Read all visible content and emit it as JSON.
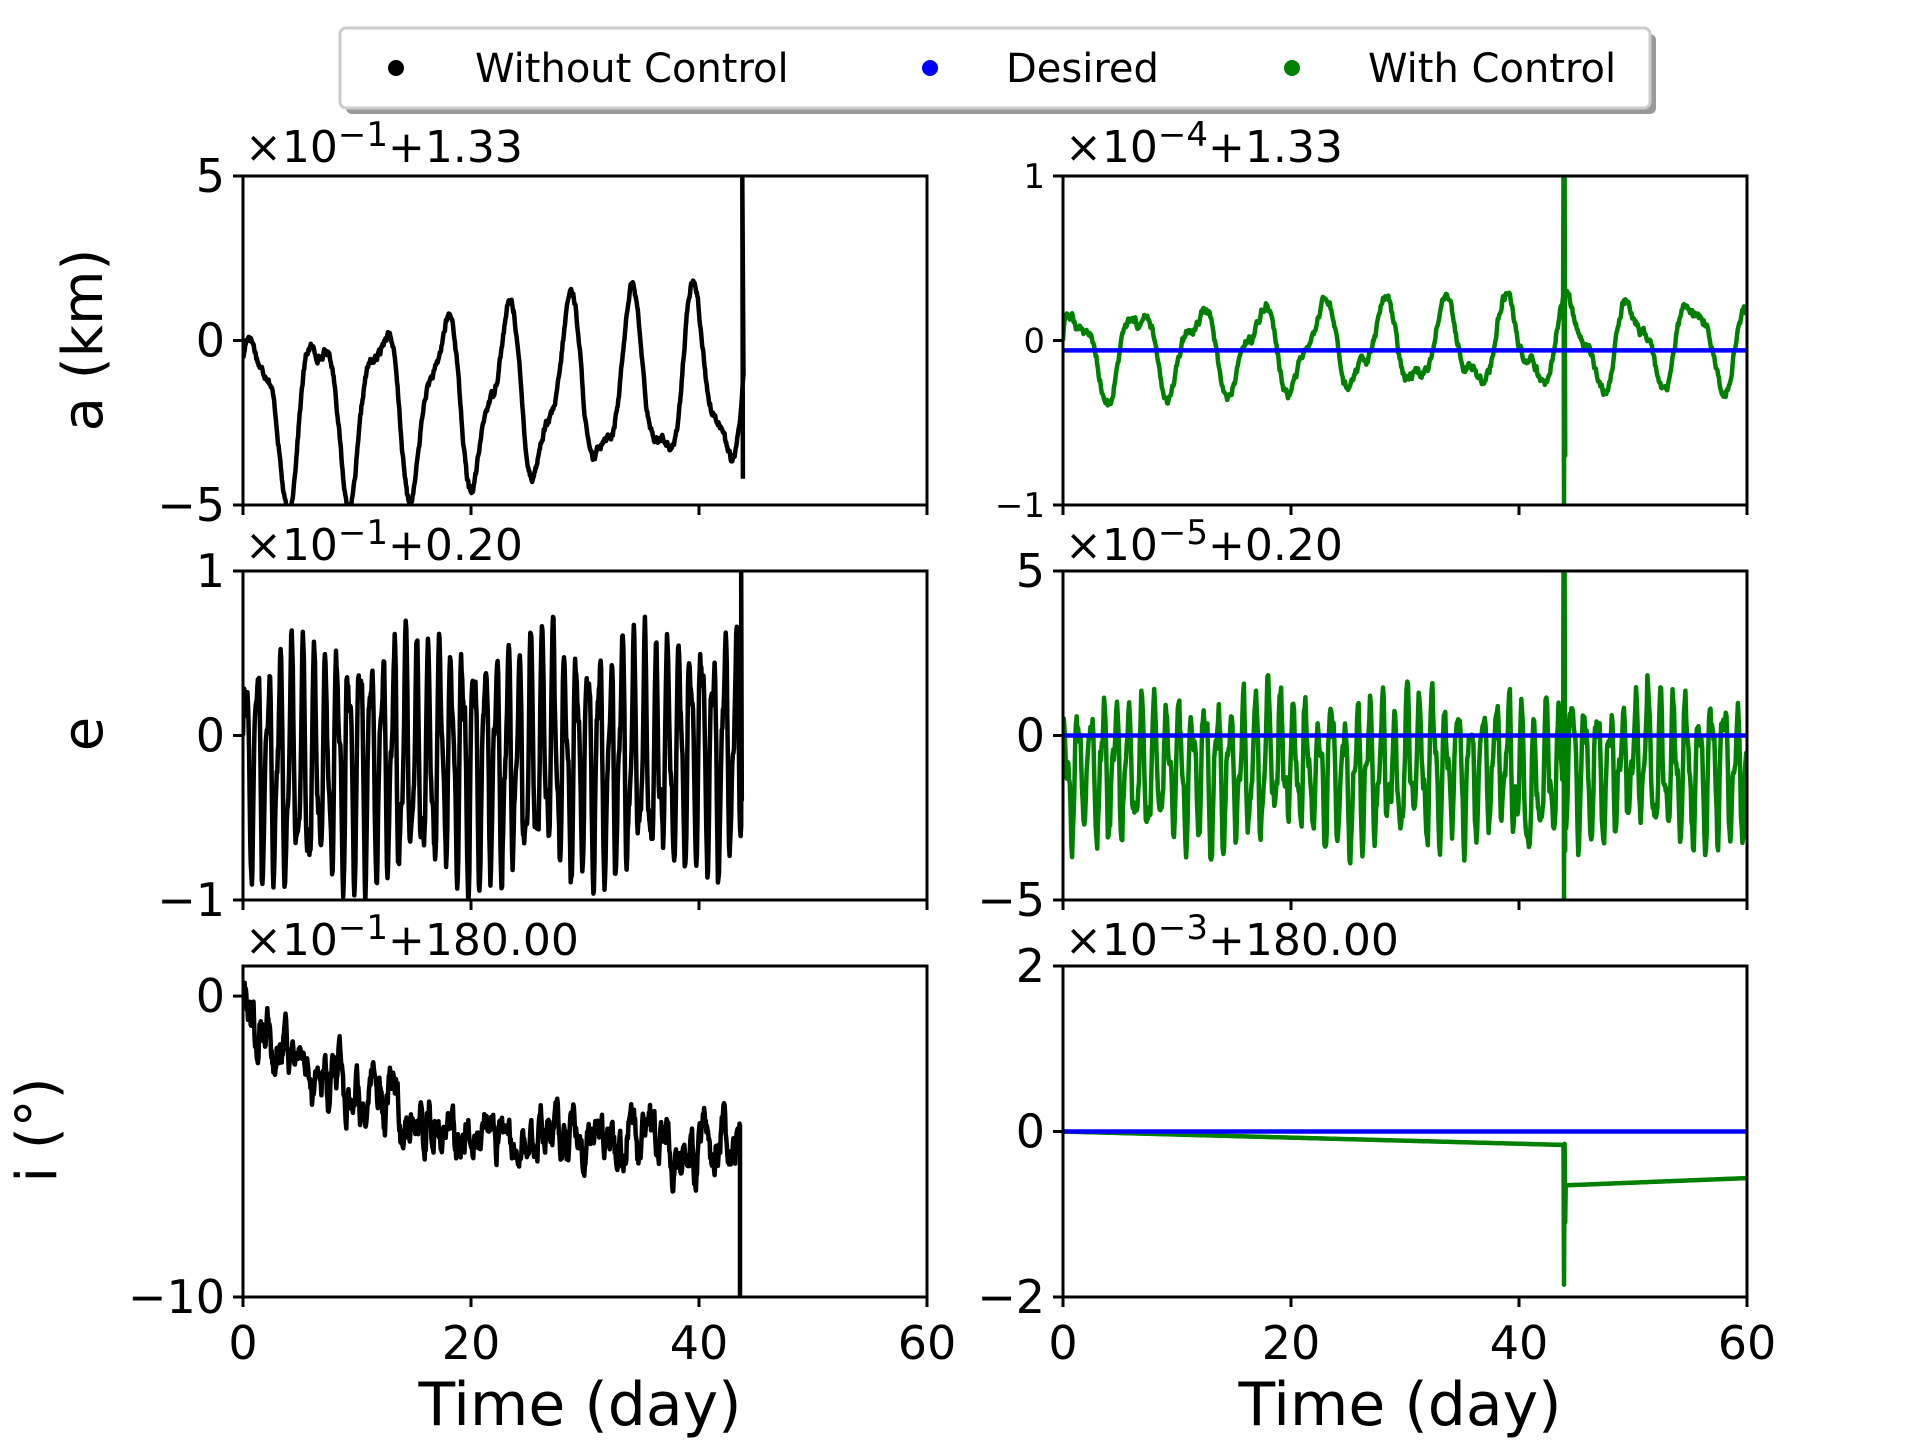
{
  "chart_data": {
    "type": "line",
    "legend": {
      "placement": "top-center",
      "entries": [
        {
          "label": "Without Control",
          "color": "#000000"
        },
        {
          "label": "Desired",
          "color": "#0000ff"
        },
        {
          "label": "With Control",
          "color": "#008000"
        }
      ]
    },
    "xlabel": "Time (day)",
    "xlim": [
      0,
      60
    ],
    "xticks": [
      "0",
      "20",
      "40",
      "60"
    ],
    "colors": {
      "without": "#000000",
      "desired": "#0000ff",
      "with": "#008000"
    },
    "rows": [
      {
        "ylabel": "a (km)",
        "left": {
          "offset_mult": "×10",
          "offset_exp": "−1",
          "offset_add": "+1.33",
          "ylim": [
            -5,
            5
          ],
          "yticks": [
            {
              "v": 5,
              "t": "5"
            },
            {
              "v": 0,
              "t": "0"
            },
            {
              "v": -5,
              "t": "−5"
            }
          ],
          "series": [
            {
              "name": "Without Control",
              "key": "without",
              "x_end": 43.9,
              "freq": 0.1818,
              "phase": 0.3,
              "amp": 2.35,
              "center": -2.15,
              "trend": 0.02,
              "noise": 0.2,
              "start": 0,
              "spike_x": 43.8,
              "spike_y": 5,
              "final_y": -4.2
            }
          ]
        },
        "right": {
          "offset_mult": "×10",
          "offset_exp": "−4",
          "offset_add": "+1.33",
          "ylim": [
            -1,
            1
          ],
          "yticks": [
            {
              "v": 1,
              "t": "1"
            },
            {
              "v": 0,
              "t": "0"
            },
            {
              "v": -1,
              "t": "−1"
            }
          ],
          "desired": -0.06,
          "series": [
            {
              "name": "With Control",
              "key": "with",
              "x_end": 60,
              "freq": 0.185,
              "phase": 0.2,
              "amp": 0.24,
              "center": -0.07,
              "trend": 0.001,
              "noise": 0.05,
              "start": 0,
              "spike_x": 43.9,
              "spike_y": 1,
              "spike_low": -1
            }
          ]
        }
      },
      {
        "ylabel": "e",
        "left": {
          "offset_mult": "×10",
          "offset_exp": "−1",
          "offset_add": "+0.20",
          "ylim": [
            -1,
            1
          ],
          "yticks": [
            {
              "v": 1,
              "t": "1"
            },
            {
              "v": 0,
              "t": "0"
            },
            {
              "v": -1,
              "t": "−1"
            }
          ],
          "series": [
            {
              "name": "Without Control",
              "key": "without",
              "x_end": 43.7,
              "freq": 1.0,
              "phase": 0.0,
              "amp": 0.58,
              "center": -0.18,
              "trend": 0.002,
              "noise": 0.15,
              "start": 0,
              "spike_x": 43.7,
              "spike_y": 1,
              "final_y": -0.4
            }
          ]
        },
        "right": {
          "offset_mult": "×10",
          "offset_exp": "−5",
          "offset_add": "+0.20",
          "ylim": [
            -5,
            5
          ],
          "yticks": [
            {
              "v": 5,
              "t": "5"
            },
            {
              "v": 0,
              "t": "0"
            },
            {
              "v": -5,
              "t": "−5"
            }
          ],
          "desired": 0,
          "series": [
            {
              "name": "With Control",
              "key": "with",
              "x_end": 60,
              "freq": 0.9,
              "phase": 0.4,
              "amp": 1.7,
              "center": -1.0,
              "trend": 0.0,
              "noise": 0.9,
              "start": 0,
              "spike_x": 43.9,
              "spike_y": 5,
              "spike_low": -5
            }
          ]
        }
      },
      {
        "ylabel": "i (°)",
        "left": {
          "offset_mult": "×10",
          "offset_exp": "−1",
          "offset_add": "+180.00",
          "ylim": [
            -10,
            1
          ],
          "yticks": [
            {
              "v": 0,
              "t": "0"
            },
            {
              "v": -10,
              "t": "−10"
            }
          ],
          "series": [
            {
              "name": "Without Control",
              "key": "without",
              "x_end": 43.6,
              "drift": true,
              "start": 0,
              "final_y": -10
            }
          ]
        },
        "right": {
          "offset_mult": "×10",
          "offset_exp": "−3",
          "offset_add": "+180.00",
          "ylim": [
            -2,
            2
          ],
          "yticks": [
            {
              "v": 2,
              "t": "2"
            },
            {
              "v": 0,
              "t": "0"
            },
            {
              "v": -2,
              "t": "−2"
            }
          ],
          "desired": 0,
          "series": [
            {
              "name": "With Control",
              "key": "with",
              "x_end": 60,
              "incl": true,
              "start": 0
            }
          ]
        }
      }
    ]
  }
}
